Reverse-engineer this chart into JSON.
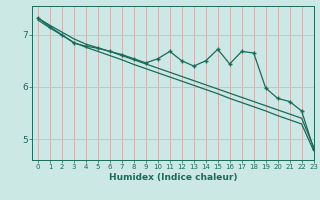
{
  "title": "",
  "xlabel": "Humidex (Indice chaleur)",
  "bg_color": "#cce8e4",
  "line_color": "#1a6b5a",
  "xlim": [
    -0.5,
    23
  ],
  "ylim": [
    4.6,
    7.55
  ],
  "xticks": [
    0,
    1,
    2,
    3,
    4,
    5,
    6,
    7,
    8,
    9,
    10,
    11,
    12,
    13,
    14,
    15,
    16,
    17,
    18,
    19,
    20,
    21,
    22,
    23
  ],
  "yticks": [
    5,
    6,
    7
  ],
  "grid_color_v": "#d4a0a0",
  "grid_color_h": "#a8d4cc",
  "series": [
    {
      "x": [
        0,
        1,
        2,
        3,
        4,
        5,
        6,
        7,
        8,
        9,
        10,
        11,
        12,
        13,
        14,
        15,
        16,
        17,
        18,
        19,
        20,
        21,
        22,
        23
      ],
      "y": [
        7.32,
        7.18,
        7.05,
        6.92,
        6.82,
        6.75,
        6.68,
        6.6,
        6.52,
        6.44,
        6.36,
        6.28,
        6.2,
        6.12,
        6.04,
        5.96,
        5.88,
        5.8,
        5.72,
        5.64,
        5.56,
        5.48,
        5.4,
        4.85
      ],
      "marker": null,
      "linestyle": "-",
      "linewidth": 0.9
    },
    {
      "x": [
        0,
        1,
        2,
        3,
        4,
        5,
        6,
        7,
        8,
        9,
        10,
        11,
        12,
        13,
        14,
        15,
        16,
        17,
        18,
        19,
        20,
        21,
        22,
        23
      ],
      "y": [
        7.28,
        7.13,
        6.99,
        6.85,
        6.76,
        6.68,
        6.6,
        6.52,
        6.43,
        6.35,
        6.27,
        6.19,
        6.11,
        6.03,
        5.95,
        5.87,
        5.78,
        5.7,
        5.62,
        5.54,
        5.45,
        5.37,
        5.29,
        4.78
      ],
      "marker": null,
      "linestyle": "-",
      "linewidth": 0.9
    },
    {
      "x": [
        0,
        1,
        2,
        3,
        4,
        5,
        6,
        7,
        8,
        9,
        10,
        11,
        12,
        13,
        14,
        15,
        16,
        17,
        18,
        19,
        20,
        21,
        22,
        23
      ],
      "y": [
        7.32,
        7.15,
        7.0,
        6.84,
        6.78,
        6.74,
        6.68,
        6.62,
        6.54,
        6.46,
        6.54,
        6.68,
        6.5,
        6.4,
        6.5,
        6.72,
        6.44,
        6.68,
        6.65,
        5.98,
        5.78,
        5.72,
        5.54,
        4.82
      ],
      "marker": "+",
      "linestyle": "-",
      "linewidth": 0.9
    }
  ]
}
